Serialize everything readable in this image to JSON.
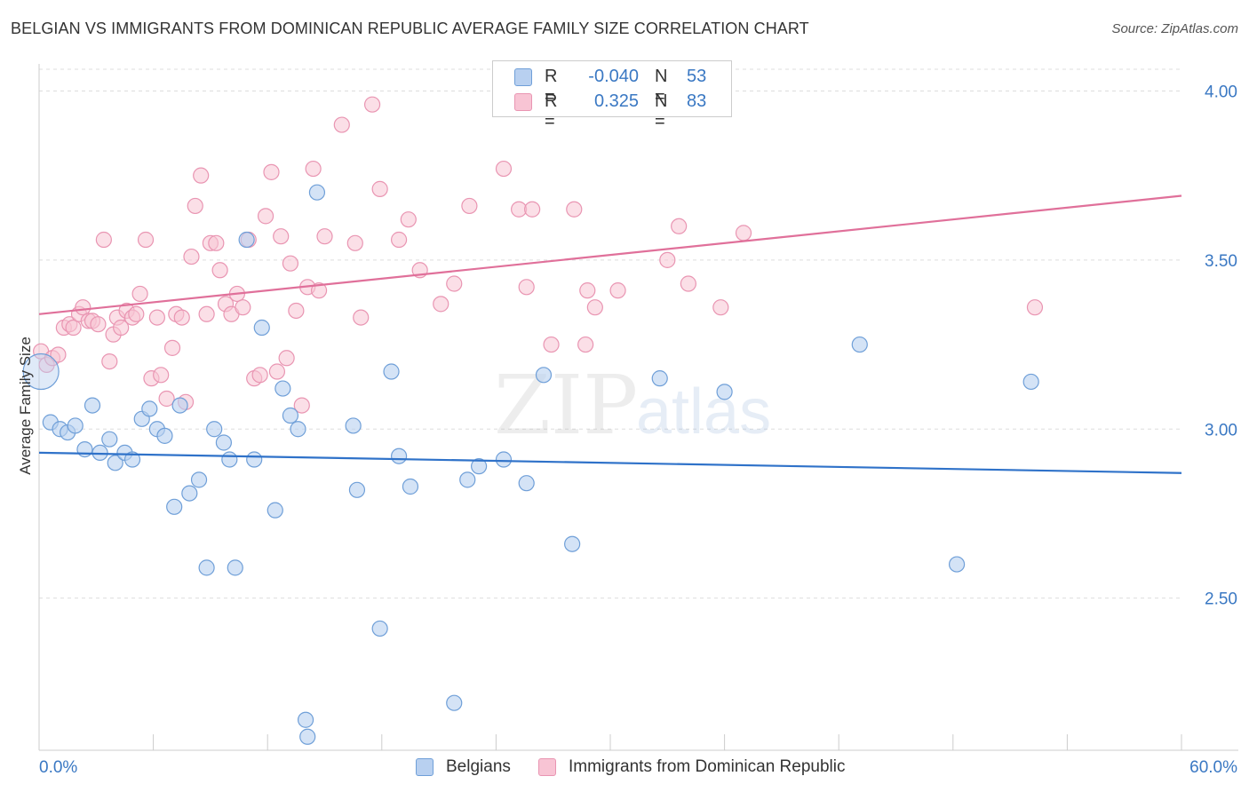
{
  "header": {
    "title": "BELGIAN VS IMMIGRANTS FROM DOMINICAN REPUBLIC AVERAGE FAMILY SIZE CORRELATION CHART",
    "source": "Source: ZipAtlas.com"
  },
  "legend": {
    "series1": {
      "r_label": "R =",
      "r_value": "-0.040",
      "n_label": "N =",
      "n_value": "53"
    },
    "series2": {
      "r_label": "R =",
      "r_value": "0.325",
      "n_label": "N =",
      "n_value": "83"
    }
  },
  "bottom_legend": {
    "series1": "Belgians",
    "series2": "Immigrants from Dominican Republic"
  },
  "watermark": {
    "zip": "ZIP",
    "atlas": "atlas"
  },
  "colors": {
    "blue_fill": "#b8d0f0",
    "blue_stroke": "#6f9fd8",
    "blue_line": "#2f72c9",
    "pink_fill": "#f8c4d4",
    "pink_stroke": "#e995b2",
    "pink_line": "#e0709a",
    "tick_label": "#3a78c3",
    "grid": "#dddddd"
  },
  "chart_data": {
    "type": "scatter",
    "title": "BELGIAN VS IMMIGRANTS FROM DOMINICAN REPUBLIC AVERAGE FAMILY SIZE CORRELATION CHART",
    "xlabel": "",
    "ylabel": "Average Family Size",
    "xlim": [
      0,
      60
    ],
    "ylim": [
      2.05,
      4.08
    ],
    "x_tick_labels": [
      "0.0%",
      "60.0%"
    ],
    "y_ticks": [
      2.5,
      3.0,
      3.5,
      4.0
    ],
    "y_tick_labels": [
      "2.50",
      "3.00",
      "3.50",
      "4.00"
    ],
    "grid": true,
    "legend_position": "top-center",
    "series": [
      {
        "name": "Belgians",
        "r": -0.04,
        "n": 53,
        "trend": {
          "x": [
            0,
            60
          ],
          "y": [
            2.93,
            2.87
          ]
        },
        "points": [
          [
            0.1,
            3.17
          ],
          [
            0.6,
            3.02
          ],
          [
            1.1,
            3.0
          ],
          [
            1.5,
            2.99
          ],
          [
            1.9,
            3.01
          ],
          [
            2.4,
            2.94
          ],
          [
            2.8,
            3.07
          ],
          [
            3.2,
            2.93
          ],
          [
            3.7,
            2.97
          ],
          [
            4.0,
            2.9
          ],
          [
            4.5,
            2.93
          ],
          [
            4.9,
            2.91
          ],
          [
            5.4,
            3.03
          ],
          [
            5.8,
            3.06
          ],
          [
            6.2,
            3.0
          ],
          [
            6.6,
            2.98
          ],
          [
            7.1,
            2.77
          ],
          [
            7.4,
            3.07
          ],
          [
            7.9,
            2.81
          ],
          [
            8.4,
            2.85
          ],
          [
            8.8,
            2.59
          ],
          [
            9.2,
            3.0
          ],
          [
            9.7,
            2.96
          ],
          [
            10.0,
            2.91
          ],
          [
            10.3,
            2.59
          ],
          [
            10.9,
            3.56
          ],
          [
            11.3,
            2.91
          ],
          [
            11.7,
            3.3
          ],
          [
            12.4,
            2.76
          ],
          [
            12.8,
            3.12
          ],
          [
            13.2,
            3.04
          ],
          [
            13.6,
            3.0
          ],
          [
            14.0,
            2.14
          ],
          [
            14.1,
            2.09
          ],
          [
            14.6,
            3.7
          ],
          [
            16.5,
            3.01
          ],
          [
            16.7,
            2.82
          ],
          [
            17.9,
            2.41
          ],
          [
            18.5,
            3.17
          ],
          [
            18.9,
            2.92
          ],
          [
            19.5,
            2.83
          ],
          [
            21.8,
            2.19
          ],
          [
            22.5,
            2.85
          ],
          [
            23.1,
            2.89
          ],
          [
            24.4,
            2.91
          ],
          [
            25.6,
            2.84
          ],
          [
            26.5,
            3.16
          ],
          [
            28.0,
            2.66
          ],
          [
            32.6,
            3.15
          ],
          [
            36.0,
            3.11
          ],
          [
            43.1,
            3.25
          ],
          [
            48.2,
            2.6
          ],
          [
            52.1,
            3.14
          ]
        ]
      },
      {
        "name": "Immigrants from Dominican Republic",
        "r": 0.325,
        "n": 83,
        "trend": {
          "x": [
            0,
            60
          ],
          "y": [
            3.34,
            3.69
          ]
        },
        "points": [
          [
            0.1,
            3.23
          ],
          [
            0.4,
            3.19
          ],
          [
            0.7,
            3.21
          ],
          [
            1.0,
            3.22
          ],
          [
            1.3,
            3.3
          ],
          [
            1.6,
            3.31
          ],
          [
            1.8,
            3.3
          ],
          [
            2.1,
            3.34
          ],
          [
            2.3,
            3.36
          ],
          [
            2.6,
            3.32
          ],
          [
            2.8,
            3.32
          ],
          [
            3.1,
            3.31
          ],
          [
            3.4,
            3.56
          ],
          [
            3.7,
            3.2
          ],
          [
            3.9,
            3.28
          ],
          [
            4.1,
            3.33
          ],
          [
            4.3,
            3.3
          ],
          [
            4.6,
            3.35
          ],
          [
            4.9,
            3.33
          ],
          [
            5.1,
            3.34
          ],
          [
            5.3,
            3.4
          ],
          [
            5.6,
            3.56
          ],
          [
            5.9,
            3.15
          ],
          [
            6.2,
            3.33
          ],
          [
            6.4,
            3.16
          ],
          [
            6.7,
            3.09
          ],
          [
            7.0,
            3.24
          ],
          [
            7.2,
            3.34
          ],
          [
            7.5,
            3.33
          ],
          [
            7.7,
            3.08
          ],
          [
            8.0,
            3.51
          ],
          [
            8.2,
            3.66
          ],
          [
            8.5,
            3.75
          ],
          [
            8.8,
            3.34
          ],
          [
            9.0,
            3.55
          ],
          [
            9.3,
            3.55
          ],
          [
            9.5,
            3.47
          ],
          [
            9.8,
            3.37
          ],
          [
            10.1,
            3.34
          ],
          [
            10.4,
            3.4
          ],
          [
            10.7,
            3.36
          ],
          [
            11.0,
            3.56
          ],
          [
            11.3,
            3.15
          ],
          [
            11.6,
            3.16
          ],
          [
            11.9,
            3.63
          ],
          [
            12.2,
            3.76
          ],
          [
            12.5,
            3.17
          ],
          [
            12.7,
            3.57
          ],
          [
            13.0,
            3.21
          ],
          [
            13.2,
            3.49
          ],
          [
            13.5,
            3.35
          ],
          [
            13.8,
            3.07
          ],
          [
            14.1,
            3.42
          ],
          [
            14.4,
            3.77
          ],
          [
            14.7,
            3.41
          ],
          [
            15.0,
            3.57
          ],
          [
            15.9,
            3.9
          ],
          [
            16.6,
            3.55
          ],
          [
            16.9,
            3.33
          ],
          [
            17.5,
            3.96
          ],
          [
            17.9,
            3.71
          ],
          [
            18.9,
            3.56
          ],
          [
            19.4,
            3.62
          ],
          [
            20.0,
            3.47
          ],
          [
            21.1,
            3.37
          ],
          [
            21.8,
            3.43
          ],
          [
            22.6,
            3.66
          ],
          [
            24.4,
            3.77
          ],
          [
            25.2,
            3.65
          ],
          [
            25.6,
            3.42
          ],
          [
            25.9,
            3.65
          ],
          [
            26.9,
            3.25
          ],
          [
            28.1,
            3.65
          ],
          [
            28.7,
            3.25
          ],
          [
            28.8,
            3.41
          ],
          [
            29.2,
            3.36
          ],
          [
            30.4,
            3.41
          ],
          [
            33.0,
            3.5
          ],
          [
            33.6,
            3.6
          ],
          [
            34.1,
            3.43
          ],
          [
            35.8,
            3.36
          ],
          [
            37.0,
            3.58
          ],
          [
            52.3,
            3.36
          ]
        ]
      }
    ]
  }
}
